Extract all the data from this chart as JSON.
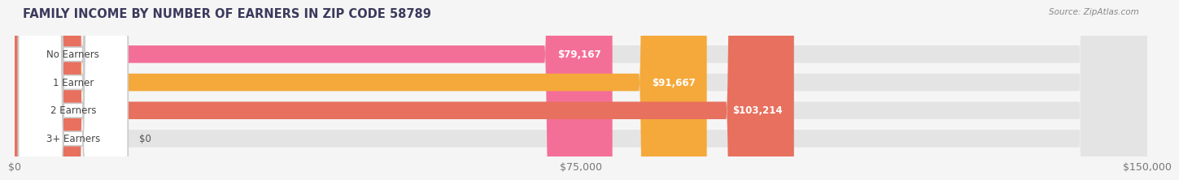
{
  "title": "FAMILY INCOME BY NUMBER OF EARNERS IN ZIP CODE 58789",
  "source": "Source: ZipAtlas.com",
  "categories": [
    "No Earners",
    "1 Earner",
    "2 Earners",
    "3+ Earners"
  ],
  "values": [
    79167,
    91667,
    103214,
    0
  ],
  "bar_colors": [
    "#f46f97",
    "#f5a93a",
    "#e8705e",
    "#a8c4e5"
  ],
  "value_labels": [
    "$79,167",
    "$91,667",
    "$103,214",
    "$0"
  ],
  "xlim": [
    0,
    150000
  ],
  "xticks": [
    0,
    75000,
    150000
  ],
  "xtick_labels": [
    "$0",
    "$75,000",
    "$150,000"
  ],
  "background_color": "#f5f5f5",
  "bar_background": "#e4e4e4",
  "title_fontsize": 10.5,
  "bar_height": 0.62,
  "fig_width": 14.06,
  "fig_height": 2.33
}
